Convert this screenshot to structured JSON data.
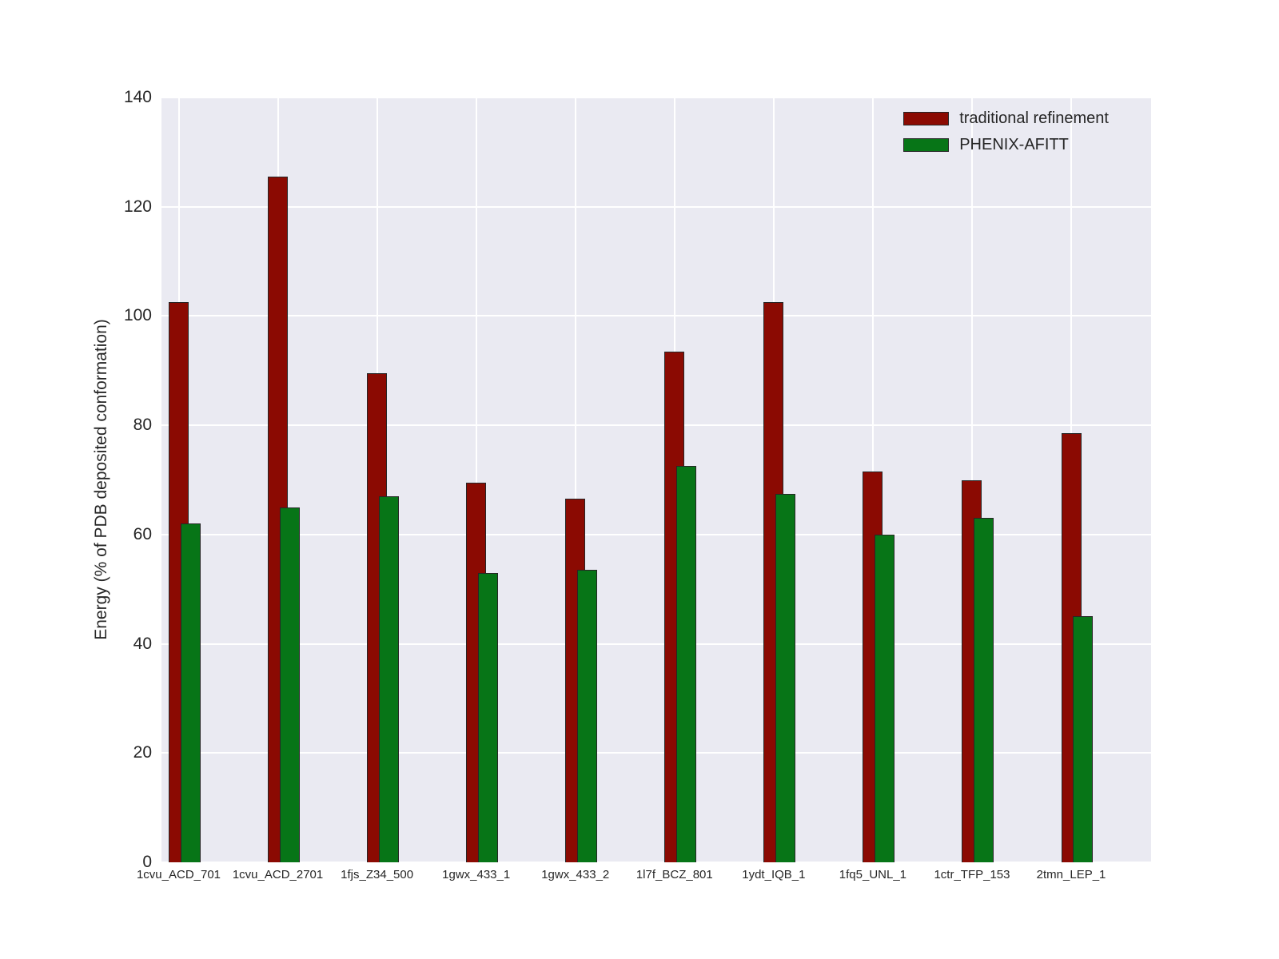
{
  "chart_data": {
    "type": "bar",
    "title": "",
    "xlabel": "",
    "ylabel": "Energy (% of PDB deposited conformation)",
    "ylim": [
      0,
      140
    ],
    "yticks": [
      0,
      20,
      40,
      60,
      80,
      100,
      120,
      140
    ],
    "grid": true,
    "legend_position": "upper right",
    "categories": [
      "1cvu_ACD_701",
      "1cvu_ACD_2701",
      "1fjs_Z34_500",
      "1gwx_433_1",
      "1gwx_433_2",
      "1l7f_BCZ_801",
      "1ydt_IQB_1",
      "1fq5_UNL_1",
      "1ctr_TFP_153",
      "2tmn_LEP_1"
    ],
    "series": [
      {
        "name": "traditional refinement",
        "color": "#8B0A02",
        "values": [
          102.5,
          125.5,
          89.5,
          69.5,
          66.5,
          93.5,
          102.5,
          71.5,
          70,
          78.5
        ]
      },
      {
        "name": "PHENIX-AFITT",
        "color": "#077517",
        "values": [
          62,
          65,
          67,
          53,
          53.5,
          72.5,
          67.5,
          60,
          63,
          45
        ]
      }
    ],
    "colors": {
      "plot_background": "#EAEAF2",
      "gridline": "#FFFFFF",
      "text": "#262626",
      "bar_edge": "#262626"
    }
  }
}
